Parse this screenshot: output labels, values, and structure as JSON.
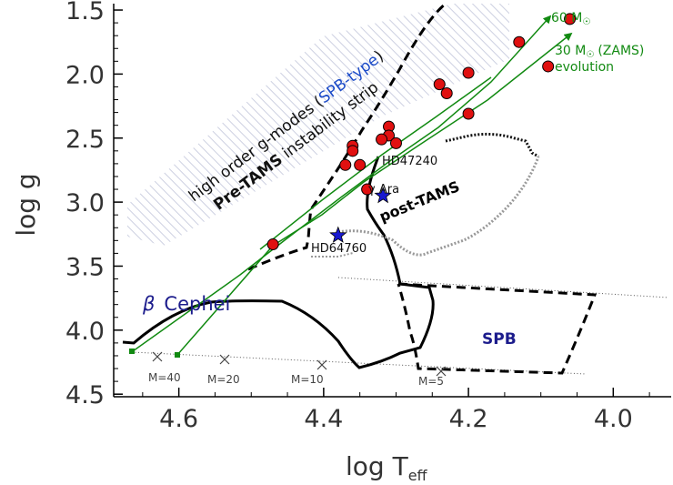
{
  "chart_data": {
    "type": "scatter",
    "xlabel": "log T",
    "xlabel_sub": "eff",
    "ylabel": "log g",
    "xlim": [
      4.69,
      3.92
    ],
    "ylim": [
      4.52,
      1.45
    ],
    "x_reversed": true,
    "y_reversed": true,
    "x_ticks": [
      "4.6",
      "4.4",
      "4.2",
      "4.0"
    ],
    "x_tick_values": [
      4.6,
      4.4,
      4.2,
      4.0
    ],
    "y_ticks": [
      "1.5",
      "2.0",
      "2.5",
      "3.0",
      "3.5",
      "4.0",
      "4.5"
    ],
    "y_tick_values": [
      1.5,
      2.0,
      2.5,
      3.0,
      3.5,
      4.0,
      4.5
    ],
    "grid": false,
    "series": [
      {
        "name": "stars",
        "marker": "red-circle",
        "color": "#e01010",
        "points": [
          [
            4.06,
            1.57
          ],
          [
            4.13,
            1.75
          ],
          [
            4.09,
            1.94
          ],
          [
            4.2,
            1.99
          ],
          [
            4.2,
            2.31
          ],
          [
            4.24,
            2.08
          ],
          [
            4.23,
            2.15
          ],
          [
            4.31,
            2.41
          ],
          [
            4.31,
            2.48
          ],
          [
            4.32,
            2.51
          ],
          [
            4.3,
            2.54
          ],
          [
            4.36,
            2.56
          ],
          [
            4.36,
            2.6
          ],
          [
            4.37,
            2.71
          ],
          [
            4.35,
            2.71
          ],
          [
            4.34,
            2.9
          ],
          [
            4.47,
            3.33
          ]
        ]
      },
      {
        "name": "blue stars",
        "marker": "blue-star",
        "color": "#1818d0",
        "points": [
          [
            4.318,
            2.95
          ],
          [
            4.38,
            3.26
          ]
        ]
      }
    ],
    "annotations": {
      "sixty": "60 M",
      "thirty": "30 M",
      "zams_suffix": "(ZAMS)",
      "evolution": "evolution",
      "hd47240": "HD47240",
      "gamma_ara": "γ Ara",
      "post_tams": "post-TAMS",
      "hd64760": "HD64760",
      "beta": "β",
      "cephei": "Cephei",
      "spb": "SPB",
      "strip_line1_a": "high order g-modes (",
      "strip_line1_b": "SPB-type",
      "strip_line1_c": ")",
      "strip_line2_a": "Pre-TAMS",
      "strip_line2_b": " instability strip",
      "m40": "M=40",
      "m20": "M=20",
      "m10": "M=10",
      "m5": "M=5"
    },
    "colors": {
      "green": "#128a12",
      "red": "#e01010",
      "blue": "#1818d0",
      "navy": "#1c1c8c",
      "hatch": "#c4c8dc"
    }
  }
}
